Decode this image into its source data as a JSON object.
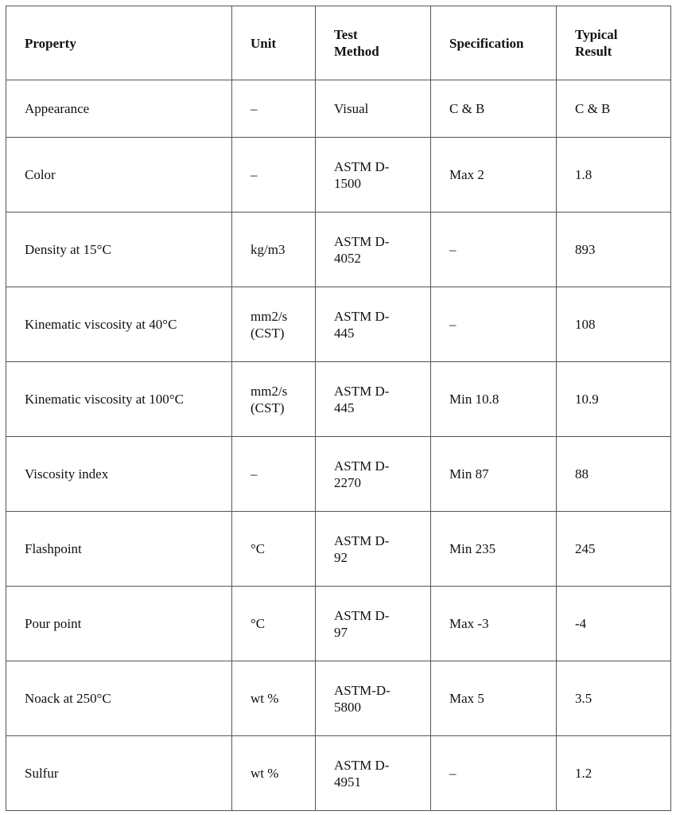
{
  "table": {
    "headers": [
      "Property",
      "Unit",
      "Test Method",
      "Specification",
      "Typical Result"
    ],
    "rows": [
      [
        "Appearance",
        "–",
        "Visual",
        "C & B",
        "C & B"
      ],
      [
        "Color",
        "–",
        "ASTM D-1500",
        "Max 2",
        "1.8"
      ],
      [
        "Density at 15°C",
        "kg/m3",
        "ASTM D-4052",
        "–",
        "893"
      ],
      [
        "Kinematic viscosity at 40°C",
        "mm2/s (CST)",
        "ASTM D-445",
        "–",
        "108"
      ],
      [
        "Kinematic viscosity at 100°C",
        "mm2/s (CST)",
        "ASTM D-445",
        "Min 10.8",
        "10.9"
      ],
      [
        "Viscosity index",
        "–",
        "ASTM D-2270",
        "Min 87",
        "88"
      ],
      [
        "Flashpoint",
        "°C",
        "ASTM D-92",
        "Min 235",
        "245"
      ],
      [
        "Pour point",
        "°C",
        "ASTM D-97",
        "Max -3",
        "-4"
      ],
      [
        "Noack at 250°C",
        "wt %",
        "ASTM-D-5800",
        "Max 5",
        "3.5"
      ],
      [
        "Sulfur",
        "wt %",
        "ASTM D-4951",
        "–",
        "1.2"
      ]
    ]
  }
}
